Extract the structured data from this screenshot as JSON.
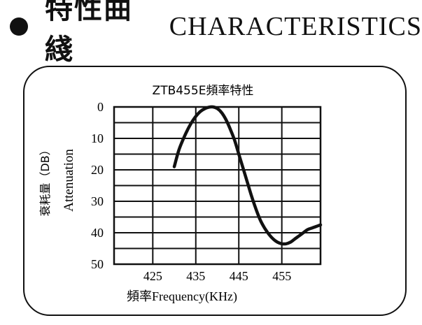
{
  "header": {
    "title_cn": "特性曲綫",
    "title_en": "CHARACTERISTICS"
  },
  "chart_data": {
    "type": "line",
    "title": "ZTB455E頻率特性",
    "xlabel": "頻率Frequency(KHz)",
    "ylabel_cn": "衰耗量（DB）",
    "ylabel_en": "Attenuation",
    "x_ticks": [
      425,
      435,
      445,
      455
    ],
    "y_ticks": [
      0,
      10,
      20,
      30,
      40,
      50
    ],
    "xlim": [
      416,
      464
    ],
    "ylim": [
      0,
      50
    ],
    "y_inverted": true,
    "grid": true,
    "series": [
      {
        "x": [
          430,
          431,
          432,
          433,
          434,
          435,
          436,
          437,
          438,
          439,
          440,
          441,
          442,
          443,
          444,
          445,
          446,
          447,
          448,
          449,
          450,
          451,
          452,
          453,
          454,
          455,
          456,
          457,
          458,
          459,
          460,
          461,
          462,
          463,
          464
        ],
        "y": [
          19,
          14,
          10.5,
          7.5,
          5,
          3,
          1.5,
          0.6,
          0.1,
          0,
          0.5,
          1.8,
          4,
          7,
          10.5,
          15,
          19.5,
          24,
          28.5,
          32.5,
          36,
          38.5,
          40.5,
          42,
          43,
          43.5,
          43.5,
          43,
          42,
          41,
          40,
          39,
          38.5,
          38,
          37.5
        ]
      }
    ]
  }
}
